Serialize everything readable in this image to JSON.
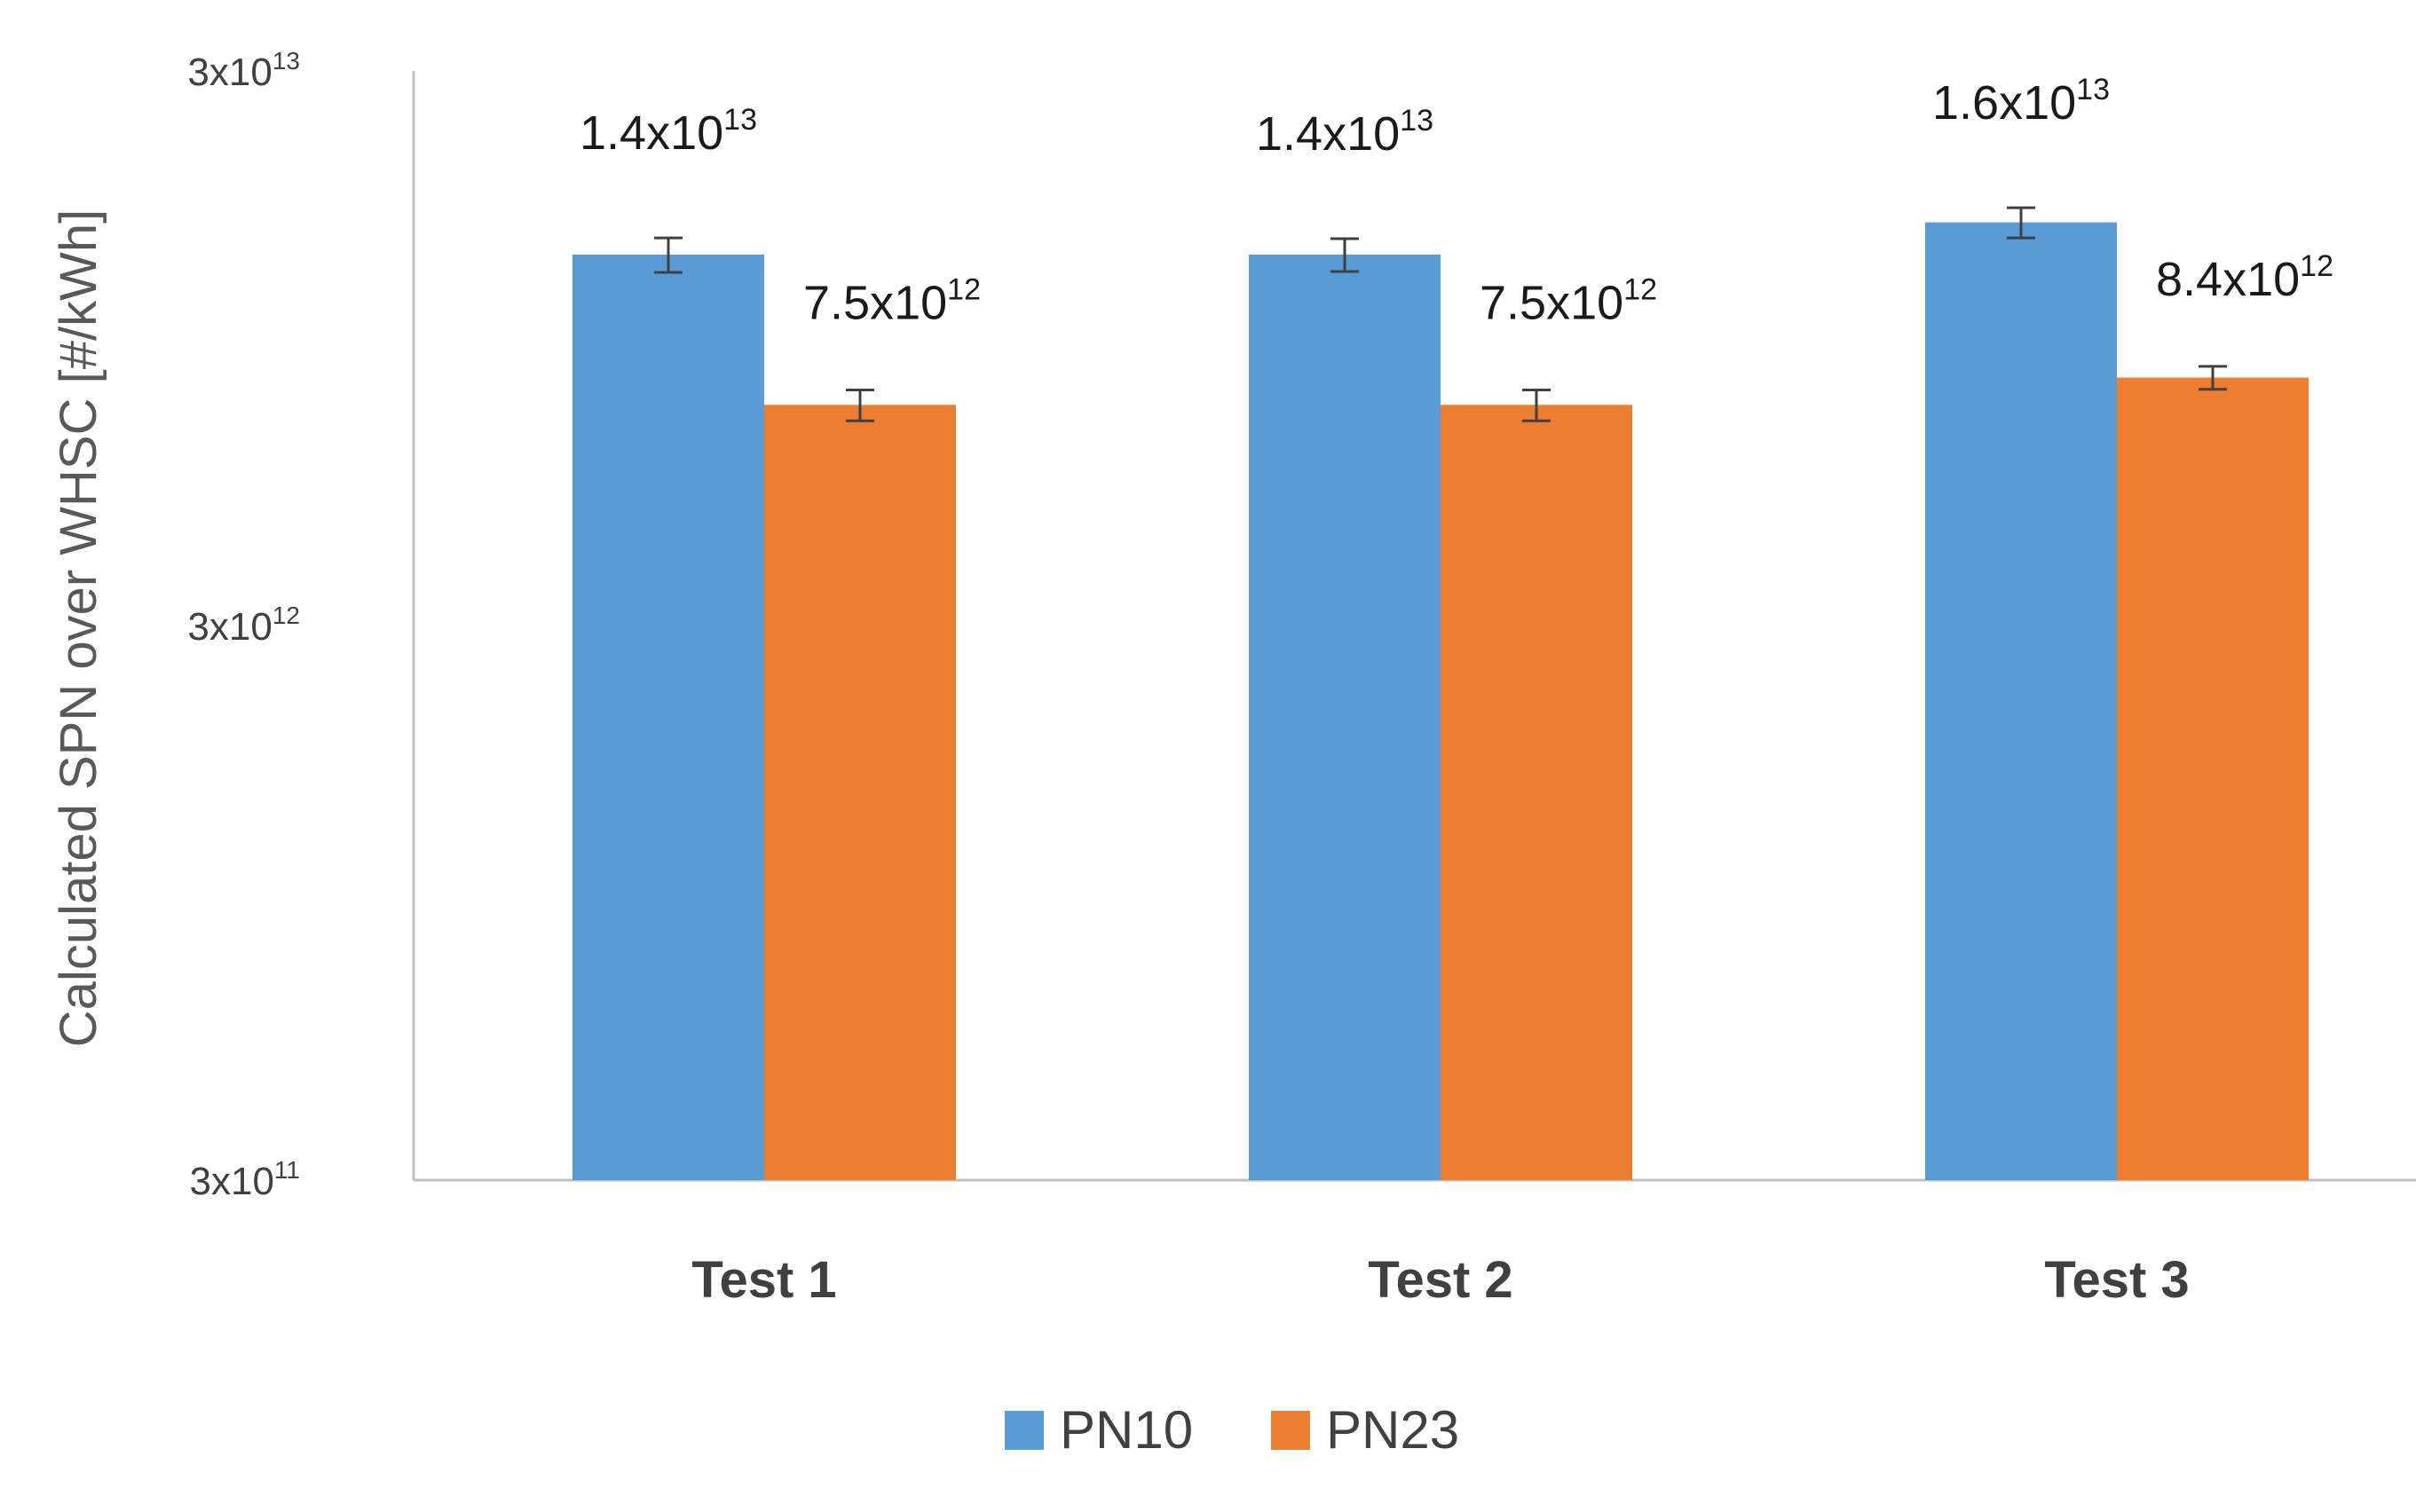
{
  "chart_data": {
    "type": "bar",
    "title": "",
    "xlabel": "",
    "ylabel": "Calculated SPN over WHSC [#/kWh]",
    "yscale": "log",
    "ylim": [
      300000000000,
      30000000000000
    ],
    "yticks": [
      {
        "value": 300000000000,
        "base": "3x10",
        "exp": "11"
      },
      {
        "value": 3000000000000,
        "base": "3x10",
        "exp": "12"
      },
      {
        "value": 30000000000000,
        "base": "3x10",
        "exp": "13"
      }
    ],
    "categories": [
      "Test 1",
      "Test 2",
      "Test 3"
    ],
    "series": [
      {
        "name": "PN10",
        "color": "#5b9bd5",
        "values": [
          14000000000000,
          14000000000000,
          16000000000000
        ],
        "error": [
          1000000000000,
          950000000000,
          1000000000000
        ],
        "labels": [
          {
            "base": "1.4x10",
            "exp": "13"
          },
          {
            "base": "1.4x10",
            "exp": "13"
          },
          {
            "base": "1.6x10",
            "exp": "13"
          }
        ]
      },
      {
        "name": "PN23",
        "color": "#ed7d31",
        "values": [
          7500000000000,
          7500000000000,
          8400000000000
        ],
        "error": [
          480000000000,
          480000000000,
          400000000000
        ],
        "labels": [
          {
            "base": "7.5x10",
            "exp": "12"
          },
          {
            "base": "7.5x10",
            "exp": "12"
          },
          {
            "base": "8.4x10",
            "exp": "12"
          }
        ]
      }
    ],
    "legend": {
      "position": "bottom"
    },
    "grid": false,
    "axis_color": "#bfbfbf",
    "error_bar_color": "#404040"
  }
}
